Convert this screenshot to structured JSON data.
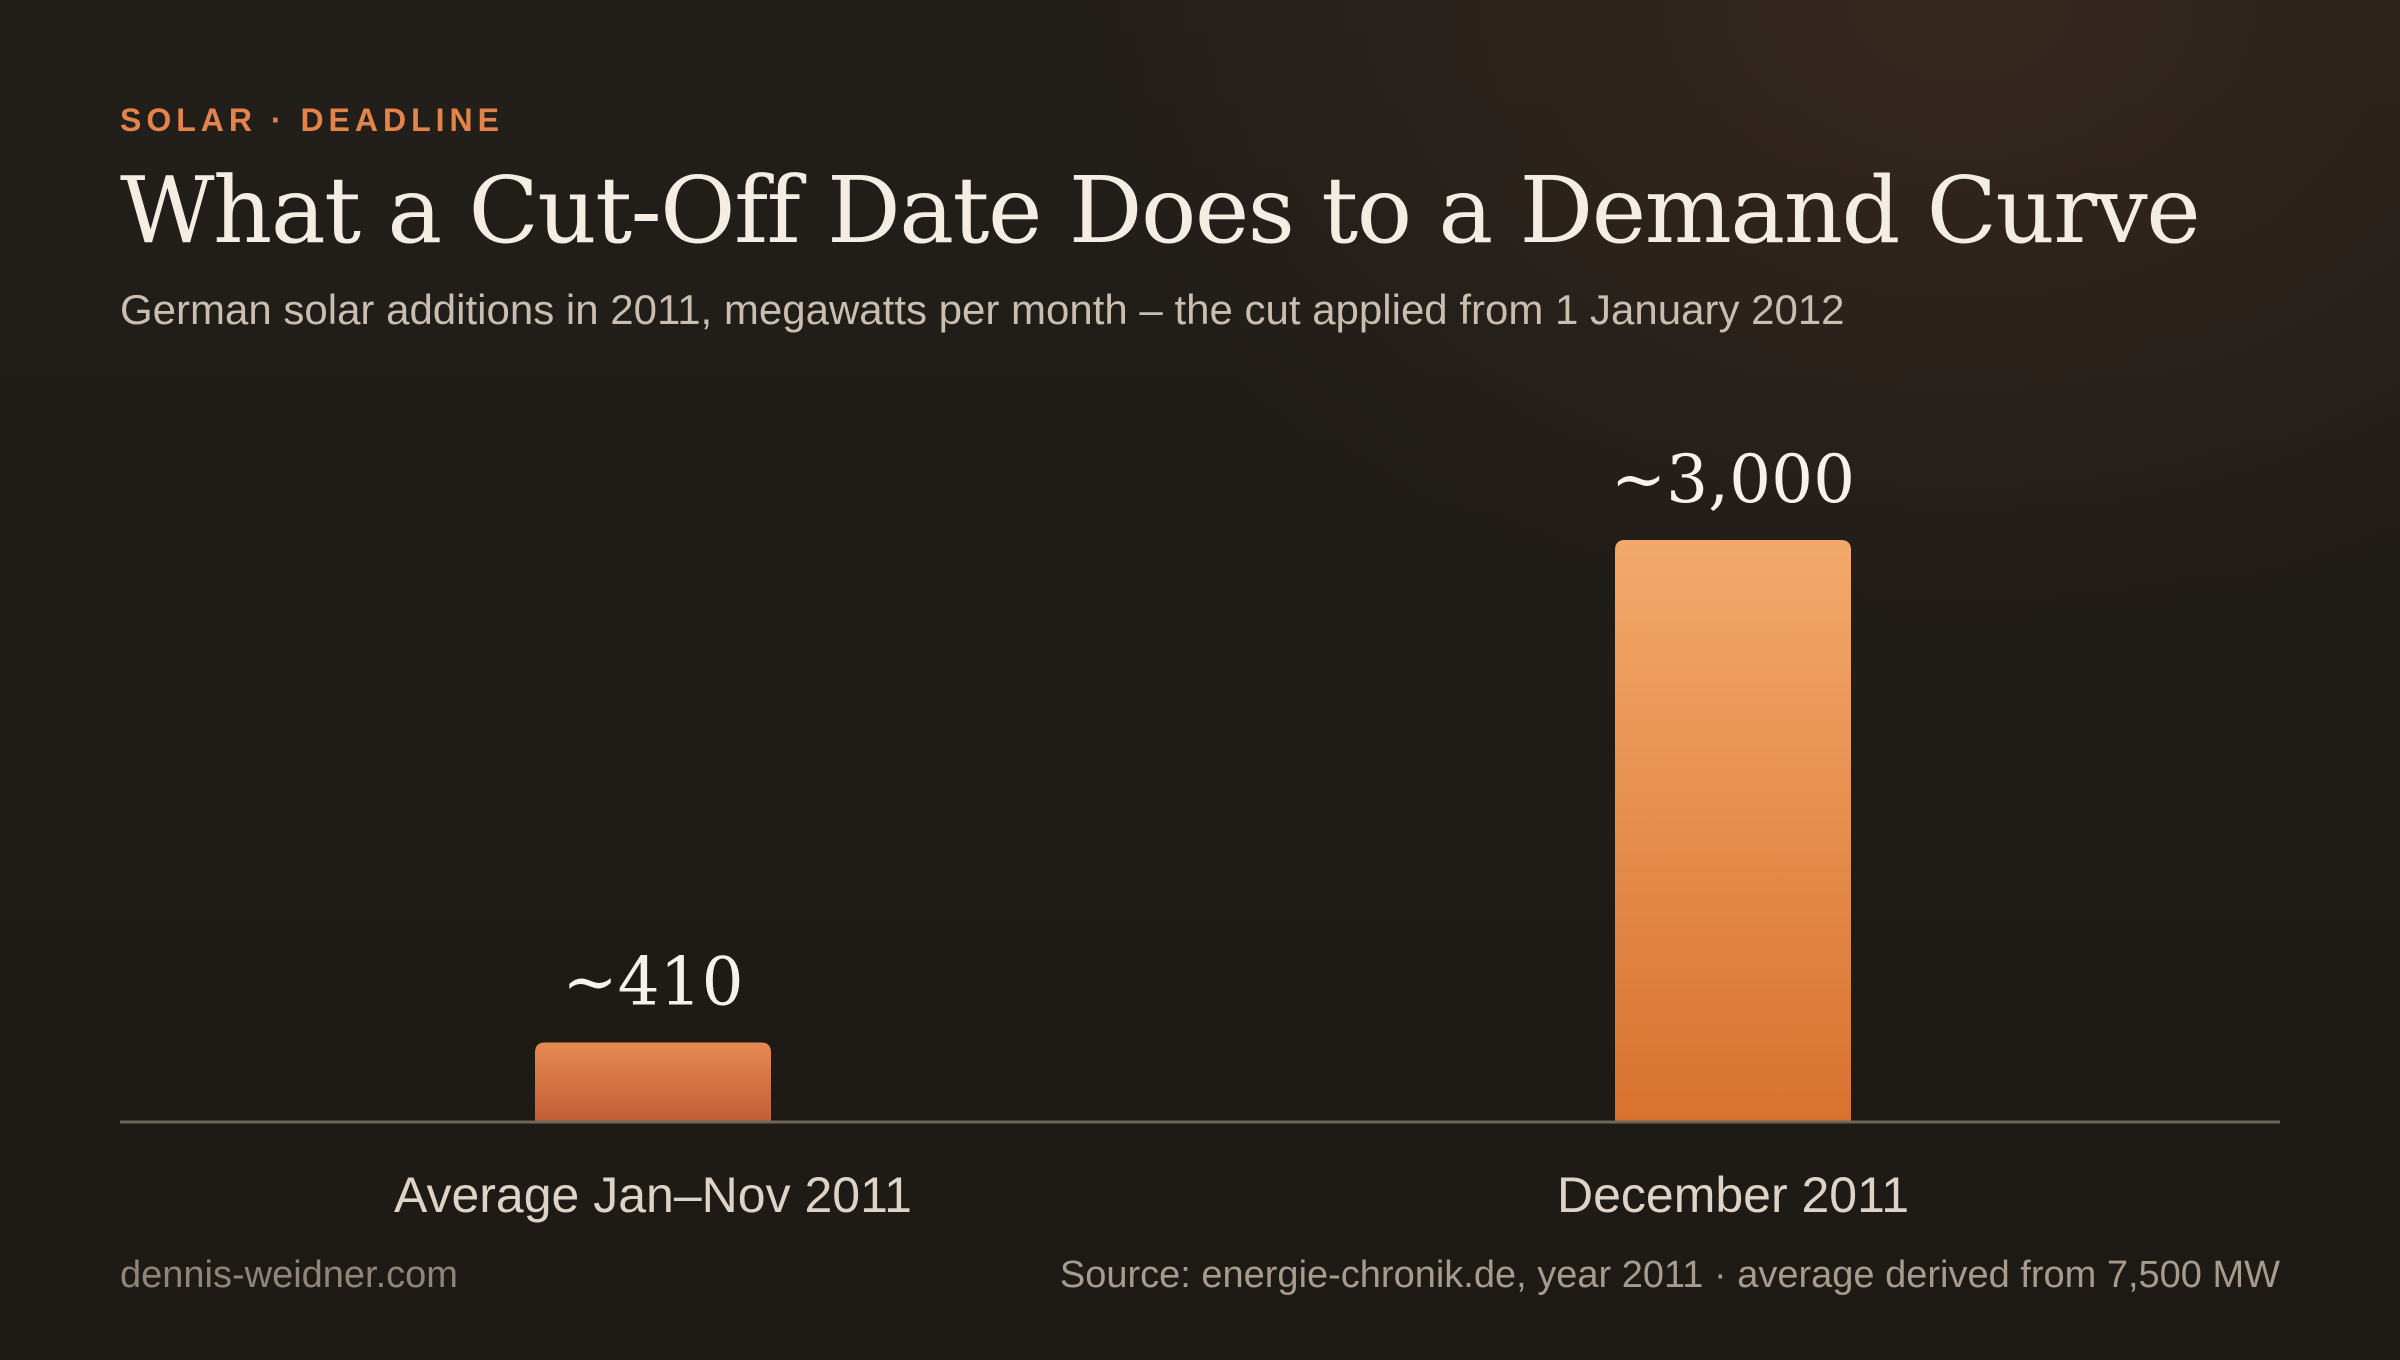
{
  "header": {
    "kicker": "SOLAR · DEADLINE",
    "title": "What a Cut-Off Date Does to a Demand Curve",
    "subtitle": "German solar additions in 2011, megawatts per month – the cut applied from 1 January 2012"
  },
  "chart_data": {
    "type": "bar",
    "categories": [
      "Average Jan–Nov 2011",
      "December 2011"
    ],
    "values": [
      410,
      3000
    ],
    "data_labels": [
      "~410",
      "~3,000"
    ],
    "title": "What a Cut-Off Date Does to a Demand Curve",
    "xlabel": "",
    "ylabel": "",
    "ylim": [
      0,
      3000
    ],
    "grid": false,
    "legend": "none",
    "colors": {
      "bar_average_top": "#e68a52",
      "bar_average_bottom": "#c25e36",
      "bar_december_top": "#f3a96b",
      "bar_december_bottom": "#d8722f",
      "baseline": "#6e655a",
      "value_label": "#f6f1ea",
      "category_label": "#ddd3c6"
    }
  },
  "footer": {
    "site": "dennis-weidner.com",
    "source": "Source: energie-chronik.de, year 2011 · average derived from 7,500 MW"
  }
}
